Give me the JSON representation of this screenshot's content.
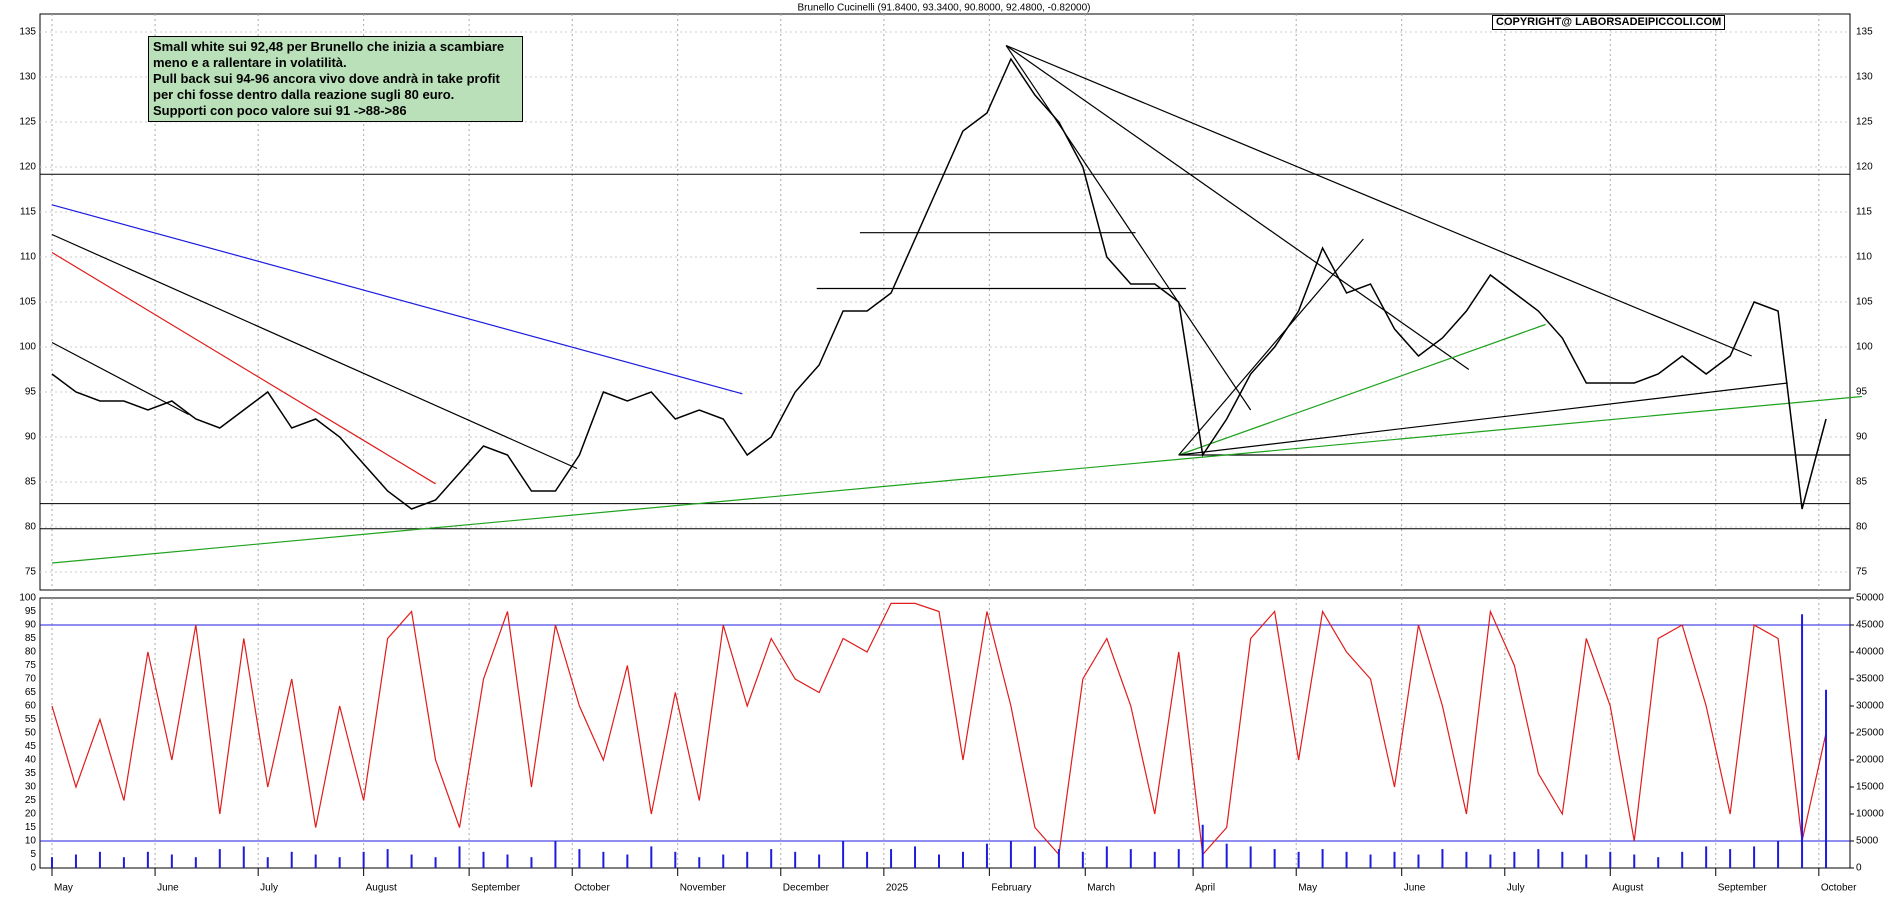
{
  "chart_data": [
    {
      "type": "line",
      "title": "Brunello Cucinelli (91.8400, 93.3400, 90.8000, 92.4800, -0.82000)",
      "watermark": "COPYRIGHT@ LABORSADEIPICCOLI.COM",
      "text_box": [
        "Small white sui 92,48 per Brunello che inizia a scambiare meno e a rallentare in volatilità.",
        "Pull back sui 94-96 ancora vivo dove andrà in take profit per chi fosse dentro dalla reazione sugli 80 euro.",
        "Supporti con poco valore sui 91 ->88->86"
      ],
      "xlim": [
        -0.5,
        75
      ],
      "xticks": [
        {
          "value": 0,
          "label": "May"
        },
        {
          "value": 4.3,
          "label": "June"
        },
        {
          "value": 8.6,
          "label": "July"
        },
        {
          "value": 13,
          "label": "August"
        },
        {
          "value": 17.4,
          "label": "September"
        },
        {
          "value": 21.7,
          "label": "October"
        },
        {
          "value": 26.1,
          "label": "November"
        },
        {
          "value": 30.4,
          "label": "December"
        },
        {
          "value": 34.7,
          "label": "2025"
        },
        {
          "value": 39.1,
          "label": "February"
        },
        {
          "value": 43.1,
          "label": "March"
        },
        {
          "value": 47.6,
          "label": "April"
        },
        {
          "value": 51.9,
          "label": "May"
        },
        {
          "value": 56.3,
          "label": "June"
        },
        {
          "value": 60.6,
          "label": "July"
        },
        {
          "value": 65,
          "label": "August"
        },
        {
          "value": 69.4,
          "label": "September"
        },
        {
          "value": 73.7,
          "label": "October"
        }
      ],
      "ylim": [
        73,
        137
      ],
      "yticks": [
        75,
        80,
        85,
        90,
        95,
        100,
        105,
        110,
        115,
        120,
        125,
        130,
        135
      ],
      "grid": true,
      "series": [
        {
          "name": "Brunello Cucinelli",
          "color": "#000000",
          "values": [
            97,
            95,
            94,
            94,
            93,
            94,
            92,
            91,
            93,
            95,
            91,
            92,
            90,
            87,
            84,
            82,
            83,
            86,
            89,
            88,
            84,
            84,
            88,
            95,
            94,
            95,
            92,
            93,
            92,
            88,
            90,
            95,
            98,
            104,
            104,
            106,
            112,
            118,
            124,
            126,
            132,
            128,
            125,
            120,
            110,
            107,
            107,
            105,
            88,
            92,
            97,
            100,
            104,
            111,
            106,
            107,
            102,
            99,
            101,
            104,
            108,
            106,
            104,
            101,
            96,
            96,
            96,
            97,
            99,
            97,
            99,
            105,
            104,
            82,
            92
          ]
        }
      ],
      "hlines": [
        119.2,
        82.6,
        79.8
      ],
      "segments": [
        {
          "color": "#000000",
          "x": [
            47,
            75
          ],
          "y": [
            88,
            88
          ]
        },
        {
          "color": "#000000",
          "x": [
            33.7,
            45.2
          ],
          "y": [
            112.7,
            112.7
          ]
        },
        {
          "color": "#000000",
          "x": [
            31.9,
            47.3
          ],
          "y": [
            106.5,
            106.5
          ]
        },
        {
          "color": "#1fa31f",
          "x": [
            0,
            75.5
          ],
          "y": [
            76,
            94.5
          ]
        },
        {
          "color": "#1c1ce0",
          "x": [
            0,
            28.8
          ],
          "y": [
            115.8,
            94.8
          ]
        },
        {
          "color": "#000000",
          "x": [
            0,
            21.9
          ],
          "y": [
            112.5,
            86.5
          ]
        },
        {
          "color": "#e01c1c",
          "x": [
            0,
            16
          ],
          "y": [
            110.5,
            84.8
          ]
        },
        {
          "color": "#000000",
          "x": [
            0,
            5.7
          ],
          "y": [
            100.5,
            92.5
          ]
        },
        {
          "color": "#000000",
          "x": [
            39.8,
            70.9
          ],
          "y": [
            133.5,
            99
          ]
        },
        {
          "color": "#000000",
          "x": [
            39.8,
            59.1
          ],
          "y": [
            133.5,
            97.5
          ]
        },
        {
          "color": "#000000",
          "x": [
            39.8,
            50
          ],
          "y": [
            133.5,
            93
          ]
        },
        {
          "color": "#000000",
          "x": [
            47,
            54.7
          ],
          "y": [
            88,
            112
          ]
        },
        {
          "color": "#1fa31f",
          "x": [
            47,
            62.3
          ],
          "y": [
            88,
            102.5
          ]
        },
        {
          "color": "#000000",
          "x": [
            47,
            72.4
          ],
          "y": [
            88,
            96
          ]
        }
      ]
    },
    {
      "type": "oscillator",
      "xlim": [
        -0.5,
        75
      ],
      "ylim": [
        0,
        100
      ],
      "yticks": [
        0,
        5,
        10,
        15,
        20,
        25,
        30,
        35,
        40,
        45,
        50,
        55,
        60,
        65,
        70,
        75,
        80,
        85,
        90,
        95,
        100
      ],
      "y2lim": [
        0,
        50000
      ],
      "y2ticks": [
        0,
        5000,
        10000,
        15000,
        20000,
        25000,
        30000,
        35000,
        40000,
        45000,
        50000
      ],
      "hlines": [
        10,
        90
      ],
      "series": [
        {
          "name": "Oscillator",
          "color": "#e01c1c",
          "values": [
            60,
            30,
            55,
            25,
            80,
            40,
            90,
            20,
            85,
            30,
            70,
            15,
            60,
            25,
            85,
            95,
            40,
            15,
            70,
            95,
            30,
            90,
            60,
            40,
            75,
            20,
            65,
            25,
            90,
            60,
            85,
            70,
            65,
            85,
            80,
            98,
            98,
            95,
            40,
            95,
            60,
            15,
            5,
            70,
            85,
            60,
            20,
            80,
            5,
            15,
            85,
            95,
            40,
            95,
            80,
            70,
            30,
            90,
            60,
            20,
            95,
            75,
            35,
            20,
            85,
            60,
            10,
            85,
            90,
            60,
            20,
            90,
            85,
            10,
            50
          ]
        },
        {
          "name": "Volume",
          "color": "#1c1ce0",
          "axis": "y2",
          "values": [
            2000,
            2500,
            3000,
            2000,
            3000,
            2500,
            2000,
            3500,
            4000,
            2000,
            3000,
            2500,
            2000,
            3000,
            3500,
            2500,
            2000,
            4000,
            3000,
            2500,
            2000,
            5000,
            3500,
            3000,
            2500,
            4000,
            3000,
            2000,
            2500,
            3000,
            3500,
            3000,
            2500,
            5000,
            3000,
            3500,
            4000,
            2500,
            3000,
            4500,
            5000,
            4000,
            3500,
            3000,
            4000,
            3500,
            3000,
            3500,
            8000,
            4500,
            4000,
            3500,
            3000,
            3500,
            3000,
            2500,
            3000,
            2500,
            3500,
            3000,
            2500,
            3000,
            3500,
            3000,
            2500,
            3000,
            2500,
            2000,
            3000,
            4000,
            3500,
            4000,
            5000,
            47000,
            33000
          ]
        }
      ]
    }
  ]
}
